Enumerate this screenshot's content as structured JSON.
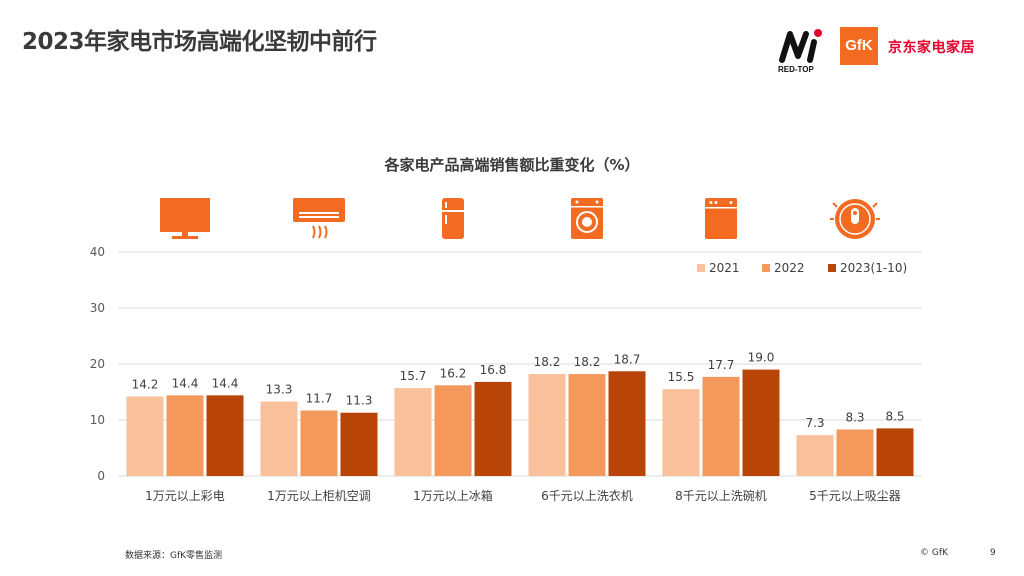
{
  "page": {
    "title": "2023年家电市场高端化坚韧中前行",
    "source": "数据来源：GfK零售监测",
    "copyright": "© GfK",
    "page_number": "9"
  },
  "logos": {
    "redtop": "RED-TOP",
    "gfk": "GfK",
    "jd": "京东家电家居"
  },
  "colors": {
    "s2021": "#f9c09b",
    "s2022": "#f5985c",
    "s2023": "#b84408",
    "icon": "#f26b21"
  },
  "icons": [
    "tv-icon",
    "air-conditioner-icon",
    "refrigerator-icon",
    "washing-machine-icon",
    "dishwasher-icon",
    "robot-vacuum-icon"
  ],
  "chart_data": {
    "type": "bar",
    "title": "各家电产品高端销售额比重变化（%）",
    "categories": [
      "1万元以上彩电",
      "1万元以上柜机空调",
      "1万元以上冰箱",
      "6千元以上洗衣机",
      "8千元以上洗碗机",
      "5千元以上吸尘器"
    ],
    "series": [
      {
        "name": "2021",
        "values": [
          14.2,
          13.3,
          15.7,
          18.2,
          15.5,
          7.3
        ]
      },
      {
        "name": "2022",
        "values": [
          14.4,
          11.7,
          16.2,
          18.2,
          17.7,
          8.3
        ]
      },
      {
        "name": "2023(1-10)",
        "values": [
          14.4,
          11.3,
          16.8,
          18.7,
          19.0,
          8.5
        ]
      }
    ],
    "value_labels": [
      [
        "14.2",
        "13.3",
        "15.7",
        "18.2",
        "15.5",
        "7.3"
      ],
      [
        "14.4",
        "11.7",
        "16.2",
        "18.2",
        "17.7",
        "8.3"
      ],
      [
        "14.4",
        "11.3",
        "16.8",
        "18.7",
        "19.0",
        "8.5"
      ]
    ],
    "ylim": [
      0,
      40
    ],
    "yticks": [
      "0",
      "10",
      "20",
      "30",
      "40"
    ],
    "grid": true,
    "legend": "top-right"
  }
}
